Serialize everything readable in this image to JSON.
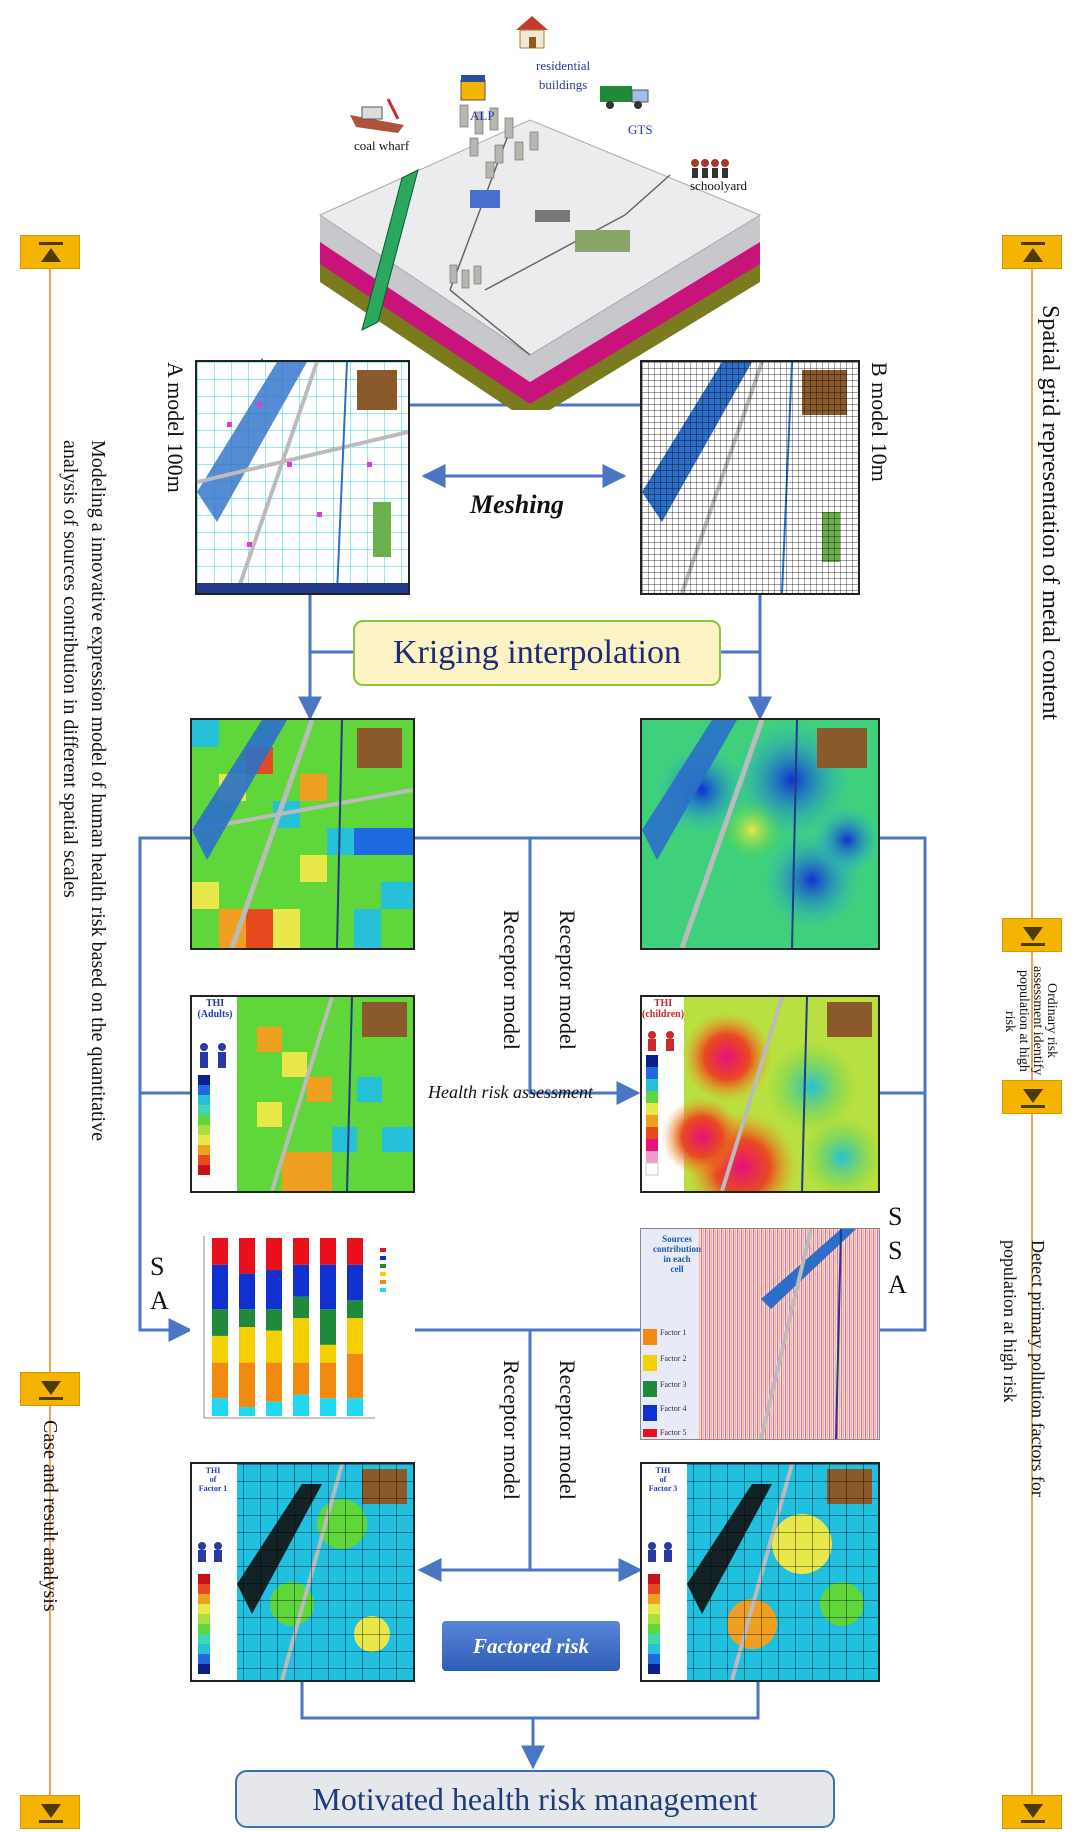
{
  "scene_labels": {
    "residential_buildings": "residential\nbuildings",
    "alp": "ALP",
    "gts": "GTS",
    "coal_wharf": "coal wharf",
    "schoolyard": "schoolyard"
  },
  "models": {
    "a_model": "A model 100m",
    "b_model": "B model   10m",
    "meshing": "Meshing"
  },
  "boxes": {
    "kriging": "Kriging interpolation",
    "factored_risk": "Factored risk",
    "motivated": "Motivated health risk management"
  },
  "flow_labels": {
    "receptor_model_1": "Receptor model",
    "receptor_model_2": "Receptor model",
    "receptor_model_3": "Receptor model",
    "receptor_model_4": "Receptor model",
    "health_risk_assessment": "Health risk assessment",
    "sa_left": "S\nA",
    "ssa_right": "S\nS\nA"
  },
  "insets": {
    "thi_adults": "THI\n(Adults)",
    "thi_children": "THI\n(children)",
    "thi_factor1": "THI\nof\nFactor 1",
    "thi_factor3": "THI\nof\nFactor 3",
    "sources_contribution": "Sources\ncontribution\nin each\ncell",
    "factor_labels": [
      "Factor 1",
      "Factor 2",
      "Factor 3",
      "Factor 4",
      "Factor 5"
    ]
  },
  "side_text": {
    "left_top": "Modeling a innovative expression model of human health risk based on the quantitative analysis of sources contribution in different spatial scales",
    "left_bottom": "Case and result analysis",
    "right_top": "Spatial grid representation of metal content",
    "right_mid": "Ordinary risk assessment identify population at high risk",
    "right_bottom": "Detect primary pollution factors for population at high risk"
  },
  "colors": {
    "arrow": "#4a76c3",
    "side_line": "#f2a35a",
    "marker": "#f5b400",
    "kriging_fill": "#fbf3c4",
    "kriging_border": "#8cc63f"
  }
}
